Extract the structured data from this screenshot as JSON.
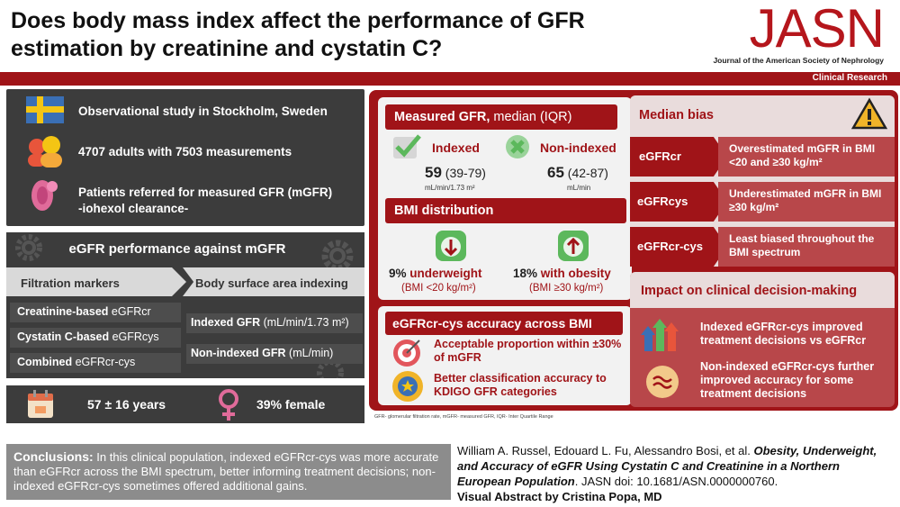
{
  "title": "Does body mass index affect the performance of GFR estimation by creatinine and cystatin C?",
  "logo": {
    "name": "JASN",
    "subtitle": "Journal of the American Society of Nephrology"
  },
  "section_label": "Clinical Research",
  "study": {
    "location": "Observational study in Stockholm, Sweden",
    "participants": "4707 adults with 7503 measurements",
    "patients_line1": "Patients referred for measured GFR (mGFR)",
    "patients_line2": "-iohexol clearance-"
  },
  "performance": {
    "header": "eGFR performance against mGFR",
    "col1": "Filtration markers",
    "col2": "Body surface area indexing",
    "markers": [
      {
        "bold": "Creatinine-based",
        "rest": " eGFRcr"
      },
      {
        "bold": "Cystatin C-based",
        "rest": " eGFRcys"
      },
      {
        "bold": "Combined",
        "rest": " eGFRcr-cys"
      }
    ],
    "indexing": [
      {
        "bold": "Indexed GFR",
        "rest": " (mL/min/1.73 m²)"
      },
      {
        "bold": "Non-indexed GFR",
        "rest": " (mL/min)"
      }
    ]
  },
  "demographics": {
    "age": "57 ± 16 years",
    "female": "39% female"
  },
  "measured_gfr": {
    "title_bold": "Measured GFR,",
    "title_rest": " median (IQR)",
    "indexed_label": "Indexed",
    "indexed_value": "59",
    "indexed_iqr": " (39-79)",
    "indexed_unit": "mL/min/1.73 m²",
    "nonindexed_label": "Non-indexed",
    "nonindexed_value": "65",
    "nonindexed_iqr": " (42-87)",
    "nonindexed_unit": "mL/min"
  },
  "bmi": {
    "title": "BMI distribution",
    "under_pct": "9%",
    "under_label": " underweight",
    "under_range": "(BMI <20 kg/m²)",
    "obese_pct": "18%",
    "obese_label": " with obesity",
    "obese_range": "(BMI ≥30 kg/m²)"
  },
  "median_bias": {
    "title": "Median bias",
    "rows": [
      {
        "label": "eGFRcr",
        "text": "Overestimated mGFR in BMI <20 and ≥30 kg/m²"
      },
      {
        "label": "eGFRcys",
        "text": "Underestimated mGFR in BMI ≥30 kg/m²"
      },
      {
        "label": "eGFRcr-cys",
        "text": "Least biased throughout the BMI spectrum"
      }
    ]
  },
  "accuracy": {
    "title": "eGFRcr-cys accuracy across BMI",
    "item1": "Acceptable proportion within ±30% of mGFR",
    "item2": "Better classification accuracy to KDIGO GFR categories"
  },
  "impact": {
    "title": "Impact on clinical decision-making",
    "item1": "Indexed eGFRcr-cys improved treatment decisions vs eGFRcr",
    "item2": "Non-indexed eGFRcr-cys further improved accuracy for some treatment decisions"
  },
  "footnote": "GFR- glomerular filtration rate, mGFR- measured GFR, IQR- Inter Quartile  Range",
  "conclusion": {
    "label": "Conclusions:",
    "text": " In this clinical population, indexed eGFRcr-cys was more accurate than eGFRcr across the BMI spectrum, better informing treatment decisions; non-indexed eGFRcr-cys sometimes offered additional gains."
  },
  "citation": {
    "authors": "William A. Russel, Edouard L. Fu, Alessandro Bosi, et al. ",
    "article": "Obesity, Underweight, and Accuracy of eGFR Using Cystatin C and Creatinine in a Northern European Population",
    "journal": ". JASN doi: 10.1681/ASN.0000000760.",
    "credit": "Visual Abstract by Cristina Popa, MD"
  },
  "colors": {
    "brand_red": "#a01418",
    "dark_gray": "#3c3c3c",
    "accent_green": "#5cb85c",
    "accent_gold": "#f0b429"
  }
}
